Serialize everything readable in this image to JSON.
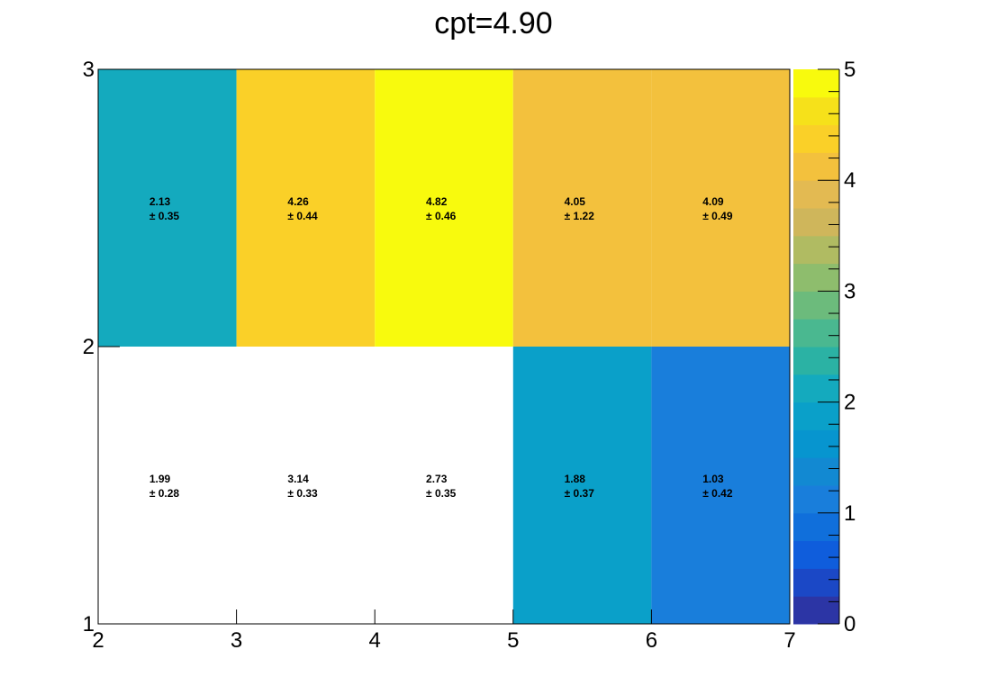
{
  "chart_data": {
    "type": "heatmap",
    "title": "cpt=4.90",
    "xlabel": "",
    "ylabel": "",
    "x_edges": [
      2,
      3,
      4,
      5,
      6,
      7
    ],
    "y_edges": [
      1,
      2,
      3
    ],
    "xlim": [
      2,
      7
    ],
    "ylim": [
      1,
      3
    ],
    "zlim": [
      0,
      5
    ],
    "x_tick_labels": [
      "2",
      "3",
      "4",
      "5",
      "6",
      "7"
    ],
    "y_tick_labels": [
      "1",
      "2",
      "3"
    ],
    "colorbar_tick_labels": [
      "0",
      "1",
      "2",
      "3",
      "4",
      "5"
    ],
    "colorbar_tick_values": [
      0,
      1,
      2,
      3,
      4,
      5
    ],
    "grid": false,
    "cells": [
      {
        "x_bin": 0,
        "y_bin": 0,
        "value": 1.99,
        "error": 0.28,
        "value_label": "1.99",
        "error_label": "± 0.28",
        "drawn": false
      },
      {
        "x_bin": 1,
        "y_bin": 0,
        "value": 3.14,
        "error": 0.33,
        "value_label": "3.14",
        "error_label": "± 0.33",
        "drawn": false
      },
      {
        "x_bin": 2,
        "y_bin": 0,
        "value": 2.73,
        "error": 0.35,
        "value_label": "2.73",
        "error_label": "± 0.35",
        "drawn": false
      },
      {
        "x_bin": 3,
        "y_bin": 0,
        "value": 1.88,
        "error": 0.37,
        "value_label": "1.88",
        "error_label": "± 0.37",
        "drawn": true
      },
      {
        "x_bin": 4,
        "y_bin": 0,
        "value": 1.03,
        "error": 0.42,
        "value_label": "1.03",
        "error_label": "± 0.42",
        "drawn": true
      },
      {
        "x_bin": 0,
        "y_bin": 1,
        "value": 2.13,
        "error": 0.35,
        "value_label": "2.13",
        "error_label": "± 0.35",
        "drawn": true
      },
      {
        "x_bin": 1,
        "y_bin": 1,
        "value": 4.26,
        "error": 0.44,
        "value_label": "4.26",
        "error_label": "± 0.44",
        "drawn": true
      },
      {
        "x_bin": 2,
        "y_bin": 1,
        "value": 4.82,
        "error": 0.46,
        "value_label": "4.82",
        "error_label": "± 0.46",
        "drawn": true
      },
      {
        "x_bin": 3,
        "y_bin": 1,
        "value": 4.05,
        "error": 1.22,
        "value_label": "4.05",
        "error_label": "± 1.22",
        "drawn": true
      },
      {
        "x_bin": 4,
        "y_bin": 1,
        "value": 4.09,
        "error": 0.49,
        "value_label": "4.09",
        "error_label": "± 0.49",
        "drawn": true
      }
    ],
    "colormap": [
      "#2c35a5",
      "#1b48c6",
      "#0f5ddc",
      "#106fdb",
      "#197edb",
      "#1289d2",
      "#0795cf",
      "#0aa0c9",
      "#14aabe",
      "#2bb2a4",
      "#4ab890",
      "#6cbb7c",
      "#8ebd6d",
      "#b0bb62",
      "#cfb65b",
      "#e3ba52",
      "#f3c13d",
      "#fad028",
      "#f6e11a",
      "#f8fa0d"
    ]
  }
}
